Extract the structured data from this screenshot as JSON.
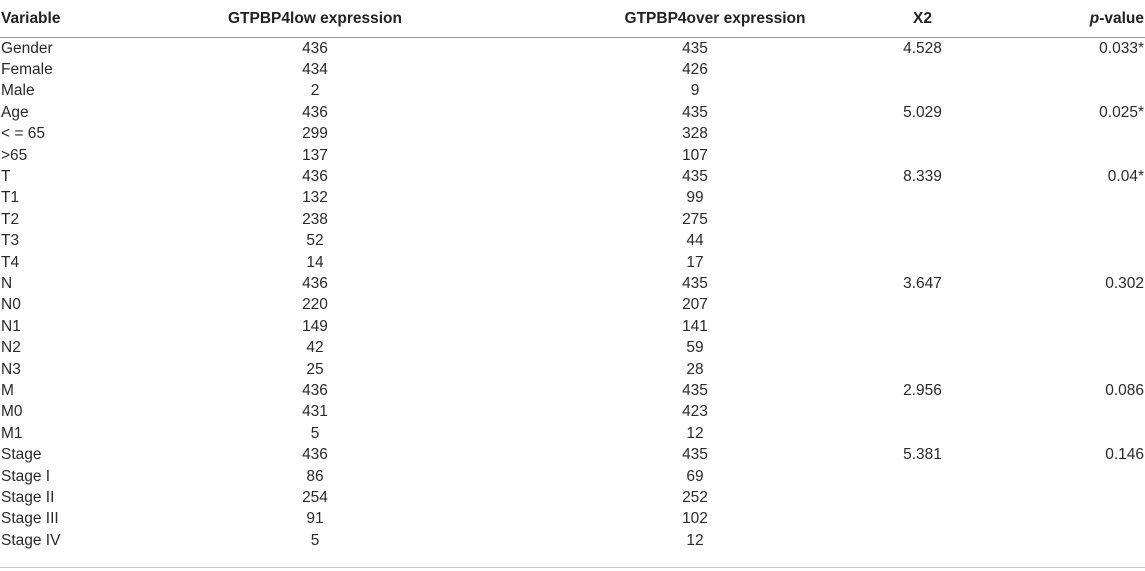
{
  "table": {
    "headers": {
      "variable": "Variable",
      "low": "GTPBP4low expression",
      "over": "GTPBP4over expression",
      "x2": "X2",
      "p_italic": "p",
      "p_rest": "-value"
    },
    "rows": [
      {
        "variable": "Gender",
        "low": "436",
        "over": "435",
        "x2": "4.528",
        "p": "0.033*"
      },
      {
        "variable": "Female",
        "low": "434",
        "over": "426",
        "x2": "",
        "p": ""
      },
      {
        "variable": "Male",
        "low": "2",
        "over": "9",
        "x2": "",
        "p": ""
      },
      {
        "variable": "Age",
        "low": "436",
        "over": "435",
        "x2": "5.029",
        "p": "0.025*"
      },
      {
        "variable": "< = 65",
        "low": "299",
        "over": "328",
        "x2": "",
        "p": ""
      },
      {
        "variable": ">65",
        "low": "137",
        "over": "107",
        "x2": "",
        "p": ""
      },
      {
        "variable": "T",
        "low": "436",
        "over": "435",
        "x2": "8.339",
        "p": "0.04*"
      },
      {
        "variable": "T1",
        "low": "132",
        "over": "99",
        "x2": "",
        "p": ""
      },
      {
        "variable": "T2",
        "low": "238",
        "over": "275",
        "x2": "",
        "p": ""
      },
      {
        "variable": "T3",
        "low": "52",
        "over": "44",
        "x2": "",
        "p": ""
      },
      {
        "variable": "T4",
        "low": "14",
        "over": "17",
        "x2": "",
        "p": ""
      },
      {
        "variable": "N",
        "low": "436",
        "over": "435",
        "x2": "3.647",
        "p": "0.302"
      },
      {
        "variable": "N0",
        "low": "220",
        "over": "207",
        "x2": "",
        "p": ""
      },
      {
        "variable": "N1",
        "low": "149",
        "over": "141",
        "x2": "",
        "p": ""
      },
      {
        "variable": "N2",
        "low": "42",
        "over": "59",
        "x2": "",
        "p": ""
      },
      {
        "variable": "N3",
        "low": "25",
        "over": "28",
        "x2": "",
        "p": ""
      },
      {
        "variable": "M",
        "low": "436",
        "over": "435",
        "x2": "2.956",
        "p": "0.086"
      },
      {
        "variable": "M0",
        "low": "431",
        "over": "423",
        "x2": "",
        "p": ""
      },
      {
        "variable": "M1",
        "low": "5",
        "over": "12",
        "x2": "",
        "p": ""
      },
      {
        "variable": "Stage",
        "low": "436",
        "over": "435",
        "x2": "5.381",
        "p": "0.146"
      },
      {
        "variable": "Stage I",
        "low": "86",
        "over": "69",
        "x2": "",
        "p": ""
      },
      {
        "variable": "Stage II",
        "low": "254",
        "over": "252",
        "x2": "",
        "p": ""
      },
      {
        "variable": "Stage III",
        "low": "91",
        "over": "102",
        "x2": "",
        "p": ""
      },
      {
        "variable": "Stage IV",
        "low": "5",
        "over": "12",
        "x2": "",
        "p": ""
      }
    ]
  }
}
